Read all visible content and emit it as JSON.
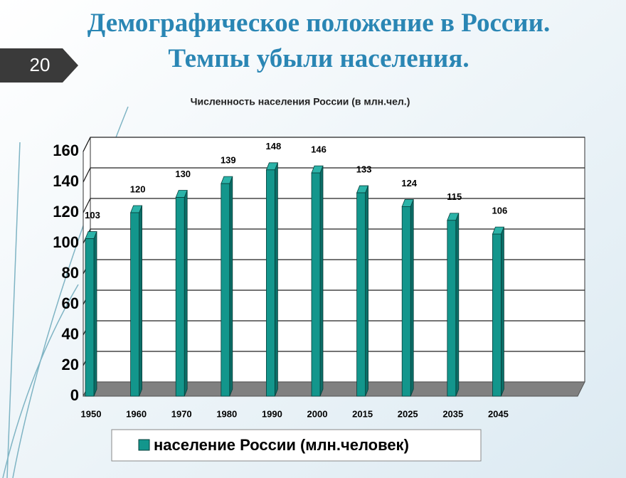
{
  "slide": {
    "number": "20",
    "title_lines": [
      "Демографическое положение в России.",
      "Темпы убыли населения."
    ]
  },
  "chart_data": {
    "type": "bar3d",
    "title": "Численность населения России (в млн.чел.)",
    "categories": [
      "1950",
      "1960",
      "1970",
      "1980",
      "1990",
      "2000",
      "2015",
      "2025",
      "2035",
      "2045"
    ],
    "series": [
      {
        "name": "население России (млн.человек)",
        "color": "#13968c",
        "values": [
          103,
          120,
          130,
          139,
          148,
          146,
          133,
          124,
          115,
          106
        ]
      }
    ],
    "ylim": [
      0,
      160
    ],
    "yticks": [
      0,
      20,
      40,
      60,
      80,
      100,
      120,
      140,
      160
    ],
    "grid": true,
    "legend": "bottom"
  }
}
